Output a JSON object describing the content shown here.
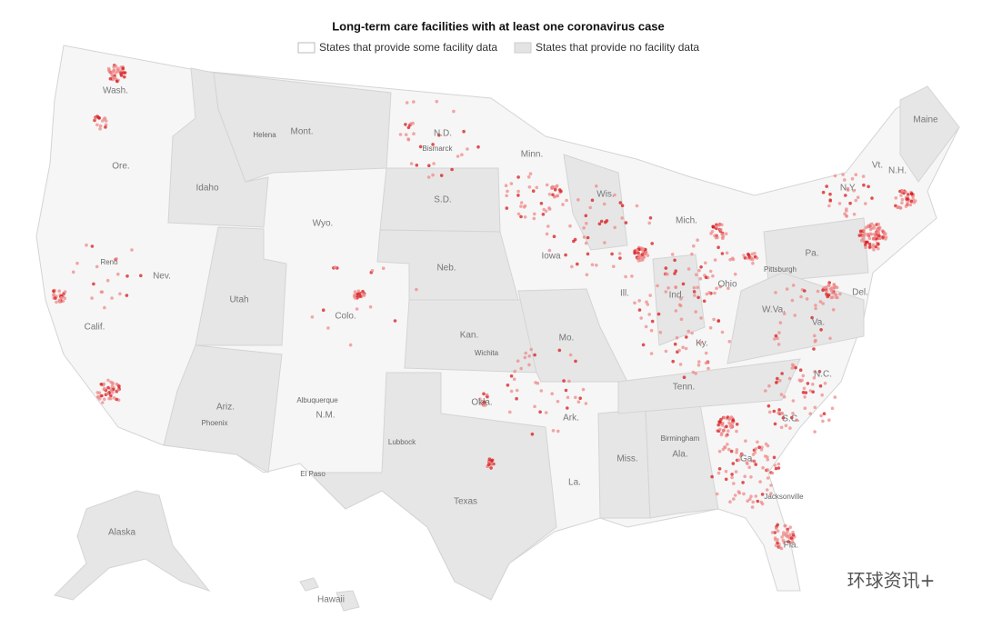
{
  "title": "Long-term care facilities with at least one coronavirus case",
  "legend": [
    "States that provide some facility data",
    "States that provide no facility data"
  ],
  "states": [
    "Wash.",
    "Ore.",
    "Calif.",
    "Nev.",
    "Idaho",
    "Mont.",
    "Wyo.",
    "Utah",
    "Colo.",
    "Ariz.",
    "N.M.",
    "N.D.",
    "S.D.",
    "Neb.",
    "Kan.",
    "Okla.",
    "Texas",
    "Minn.",
    "Iowa",
    "Mo.",
    "Ark.",
    "La.",
    "Wis.",
    "Ill.",
    "Mich.",
    "Ind.",
    "Ohio",
    "Ky.",
    "Tenn.",
    "Miss.",
    "Ala.",
    "Ga.",
    "Fla.",
    "S.C.",
    "N.C.",
    "Va.",
    "W.Va.",
    "Pa.",
    "N.Y.",
    "Vt.",
    "N.H.",
    "Maine",
    "Del.",
    "Alaska",
    "Hawaii"
  ],
  "cities": [
    "Helena",
    "Bismarck",
    "Reno",
    "Wichita",
    "Albuquerque",
    "Phoenix",
    "El Paso",
    "Lubbock",
    "Birmingham",
    "Jacksonville",
    "Pittsburgh"
  ],
  "watermark": "环球资讯+"
}
